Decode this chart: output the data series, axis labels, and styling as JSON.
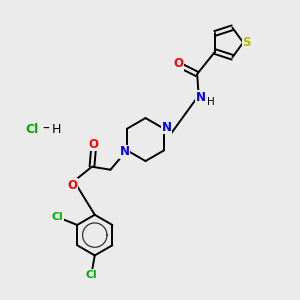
{
  "background_color": "#ebebeb",
  "bond_color": "#000000",
  "N_color": "#0000ff",
  "O_color": "#ff0000",
  "S_color": "#b8b800",
  "Cl_color": "#00aa00",
  "figsize": [
    3.0,
    3.0
  ],
  "dpi": 100,
  "xlim": [
    0,
    10
  ],
  "ylim": [
    0,
    10
  ]
}
